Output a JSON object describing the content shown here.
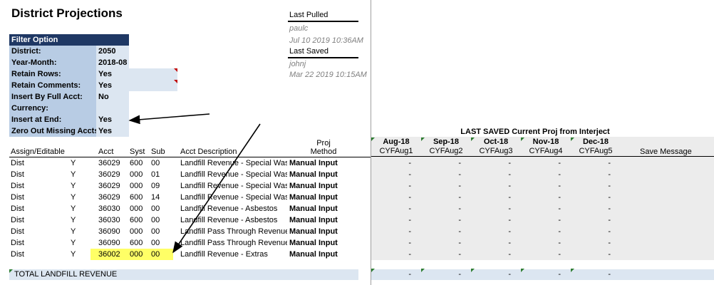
{
  "title": "District Projections",
  "filter": {
    "header": "Filter Option",
    "rows": [
      {
        "label": "District:",
        "value": "2050"
      },
      {
        "label": "Year-Month:",
        "value": "2018-08"
      },
      {
        "label": "Retain Rows:",
        "value": "Yes"
      },
      {
        "label": "Retain Comments:",
        "value": "Yes"
      },
      {
        "label": "Insert By Full Acct:",
        "value": "No"
      },
      {
        "label": "Currency:",
        "value": ""
      },
      {
        "label": "Insert at End:",
        "value": "Yes"
      },
      {
        "label": "Zero Out Missing Accts:",
        "value": "Yes"
      }
    ]
  },
  "meta": {
    "last_pulled_label": "Last Pulled",
    "last_pulled_user": "paulc",
    "last_pulled_time": "Jul 10 2019 10:36AM",
    "last_saved_label": "Last Saved",
    "last_saved_user": "johnj",
    "last_saved_time": "Mar 22 2019 10:15AM"
  },
  "table": {
    "headers": {
      "assign": "Assign/Editable",
      "acct": "Acct",
      "syst": "Syst",
      "sub": "Sub",
      "desc": "Acct Description",
      "method_line1": "Proj",
      "method_line2": "Method"
    },
    "rows": [
      {
        "assign": "Dist",
        "editable": "Y",
        "acct": "36029",
        "syst": "600",
        "sub": "00",
        "desc": "Landfill Revenue - Special Wast",
        "method": "Manual Input"
      },
      {
        "assign": "Dist",
        "editable": "Y",
        "acct": "36029",
        "syst": "000",
        "sub": "01",
        "desc": "Landfill Revenue - Special Wast",
        "method": "Manual Input"
      },
      {
        "assign": "Dist",
        "editable": "Y",
        "acct": "36029",
        "syst": "000",
        "sub": "09",
        "desc": "Landfill Revenue - Special Wast",
        "method": "Manual Input"
      },
      {
        "assign": "Dist",
        "editable": "Y",
        "acct": "36029",
        "syst": "600",
        "sub": "14",
        "desc": "Landfill Revenue - Special Wast",
        "method": "Manual Input"
      },
      {
        "assign": "Dist",
        "editable": "Y",
        "acct": "36030",
        "syst": "000",
        "sub": "00",
        "desc": "Landfill Revenue - Asbestos",
        "method": "Manual Input"
      },
      {
        "assign": "Dist",
        "editable": "Y",
        "acct": "36030",
        "syst": "600",
        "sub": "00",
        "desc": "Landfill Revenue - Asbestos",
        "method": "Manual Input"
      },
      {
        "assign": "Dist",
        "editable": "Y",
        "acct": "36090",
        "syst": "000",
        "sub": "00",
        "desc": "Landfill Pass Through Revenue",
        "method": "Manual Input"
      },
      {
        "assign": "Dist",
        "editable": "Y",
        "acct": "36090",
        "syst": "600",
        "sub": "00",
        "desc": "Landfill Pass Through Revenue",
        "method": "Manual Input"
      },
      {
        "assign": "Dist",
        "editable": "Y",
        "acct": "36002",
        "syst": "000",
        "sub": "00",
        "desc": "Landfill Revenue - Extras",
        "method": "Manual Input"
      }
    ],
    "total_label": "TOTAL LANDFILL REVENUE"
  },
  "grid": {
    "title": "LAST SAVED Current Proj from Interject",
    "months": [
      {
        "month": "Aug-18",
        "code": "CYFAug1"
      },
      {
        "month": "Sep-18",
        "code": "CYFAug2"
      },
      {
        "month": "Oct-18",
        "code": "CYFAug3"
      },
      {
        "month": "Nov-18",
        "code": "CYFAug4"
      },
      {
        "month": "Dec-18",
        "code": "CYFAug5"
      }
    ],
    "save_message": "Save Message",
    "dash": "-"
  },
  "colors": {
    "filter_header": "#1f3864",
    "filter_label": "#b8cce4",
    "filter_value": "#dce6f1",
    "highlight": "#ffff66"
  }
}
